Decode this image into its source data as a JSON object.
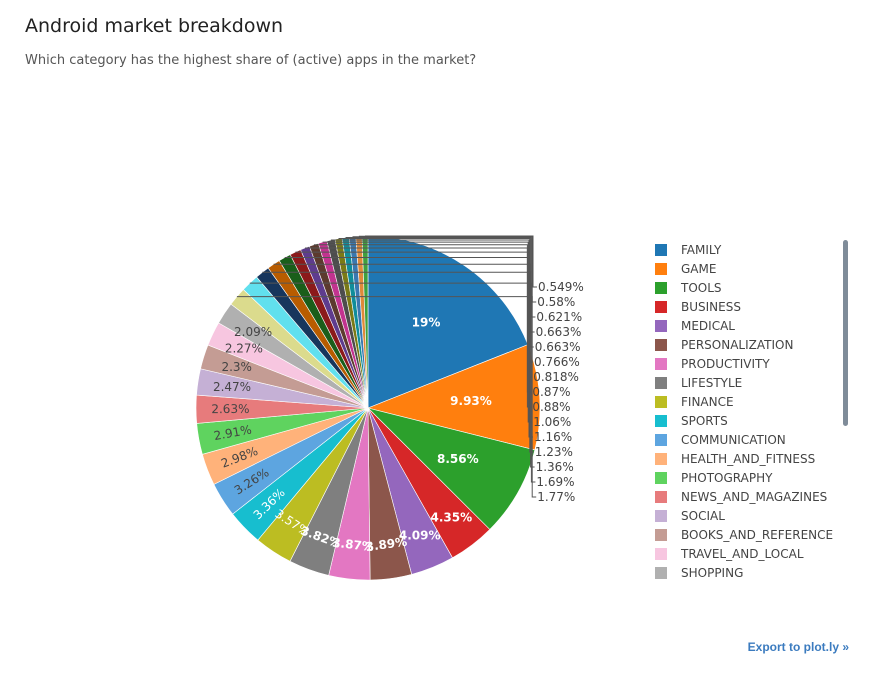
{
  "page": {
    "title": "Android market breakdown",
    "subtitle": "Which category has the highest share of (active) apps in the market?",
    "export_label": "Export to plot.ly »"
  },
  "chart_data": {
    "type": "pie",
    "title": "Android market breakdown",
    "legend_position": "right",
    "sort": "descending, clockwise from top",
    "slices": [
      {
        "label": "FAMILY",
        "value": 19,
        "text": "19%",
        "color": "#1f77b4"
      },
      {
        "label": "GAME",
        "value": 9.93,
        "text": "9.93%",
        "color": "#ff7f0e"
      },
      {
        "label": "TOOLS",
        "value": 8.56,
        "text": "8.56%",
        "color": "#2ca02c"
      },
      {
        "label": "BUSINESS",
        "value": 4.35,
        "text": "4.35%",
        "color": "#d62728"
      },
      {
        "label": "MEDICAL",
        "value": 4.09,
        "text": "4.09%",
        "color": "#9467bd"
      },
      {
        "label": "PERSONALIZATION",
        "value": 3.89,
        "text": "3.89%",
        "color": "#8c564b"
      },
      {
        "label": "PRODUCTIVITY",
        "value": 3.87,
        "text": "3.87%",
        "color": "#e377c2"
      },
      {
        "label": "LIFESTYLE",
        "value": 3.82,
        "text": "3.82%",
        "color": "#7f7f7f"
      },
      {
        "label": "FINANCE",
        "value": 3.57,
        "text": "3.57%",
        "color": "#bcbd22"
      },
      {
        "label": "SPORTS",
        "value": 3.36,
        "text": "3.36%",
        "color": "#17becf"
      },
      {
        "label": "COMMUNICATION",
        "value": 3.26,
        "text": "3.26%",
        "color": "#5da5e0"
      },
      {
        "label": "HEALTH_AND_FITNESS",
        "value": 2.98,
        "text": "2.98%",
        "color": "#ffb27a"
      },
      {
        "label": "PHOTOGRAPHY",
        "value": 2.91,
        "text": "2.91%",
        "color": "#5fd35f"
      },
      {
        "label": "NEWS_AND_MAGAZINES",
        "value": 2.63,
        "text": "2.63%",
        "color": "#e77b7c"
      },
      {
        "label": "SOCIAL",
        "value": 2.47,
        "text": "2.47%",
        "color": "#c5b0d5"
      },
      {
        "label": "BOOKS_AND_REFERENCE",
        "value": 2.3,
        "text": "2.3%",
        "color": "#c49c94"
      },
      {
        "label": "TRAVEL_AND_LOCAL",
        "value": 2.27,
        "text": "2.27%",
        "color": "#f7c6e0"
      },
      {
        "label": "SHOPPING",
        "value": 2.09,
        "text": "2.09%",
        "color": "#b0b0b0"
      },
      {
        "label": "",
        "value": 1.77,
        "text": "1.77%",
        "color": "#dbdb8d"
      },
      {
        "label": "",
        "value": 1.69,
        "text": "1.69%",
        "color": "#61e0ee"
      },
      {
        "label": "",
        "value": 1.36,
        "text": "1.36%",
        "color": "#17365d"
      },
      {
        "label": "",
        "value": 1.23,
        "text": "1.23%",
        "color": "#b85c00"
      },
      {
        "label": "",
        "value": 1.16,
        "text": "1.16%",
        "color": "#1a5e1a"
      },
      {
        "label": "",
        "value": 1.06,
        "text": "1.06%",
        "color": "#8b1a1a"
      },
      {
        "label": "",
        "value": 0.88,
        "text": "0.88%",
        "color": "#5e3c8e"
      },
      {
        "label": "",
        "value": 0.87,
        "text": "0.87%",
        "color": "#5c3a2e"
      },
      {
        "label": "",
        "value": 0.818,
        "text": "0.818%",
        "color": "#c2338f"
      },
      {
        "label": "",
        "value": 0.766,
        "text": "0.766%",
        "color": "#4d4d4d"
      },
      {
        "label": "",
        "value": 0.663,
        "text": "0.663%",
        "color": "#7a7a16"
      },
      {
        "label": "",
        "value": 0.663,
        "text": "0.663%",
        "color": "#108d9a"
      },
      {
        "label": "",
        "value": 0.621,
        "text": "0.621%",
        "color": "#3a78b0"
      },
      {
        "label": "",
        "value": 0.58,
        "text": "0.58%",
        "color": "#e0893a"
      },
      {
        "label": "",
        "value": 0.549,
        "text": "0.549%",
        "color": "#3f9f3f"
      }
    ],
    "legend_visible": [
      "FAMILY",
      "GAME",
      "TOOLS",
      "BUSINESS",
      "MEDICAL",
      "PERSONALIZATION",
      "PRODUCTIVITY",
      "LIFESTYLE",
      "FINANCE",
      "SPORTS",
      "COMMUNICATION",
      "HEALTH_AND_FITNESS",
      "PHOTOGRAPHY",
      "NEWS_AND_MAGAZINES",
      "SOCIAL",
      "BOOKS_AND_REFERENCE",
      "TRAVEL_AND_LOCAL",
      "SHOPPING"
    ]
  }
}
